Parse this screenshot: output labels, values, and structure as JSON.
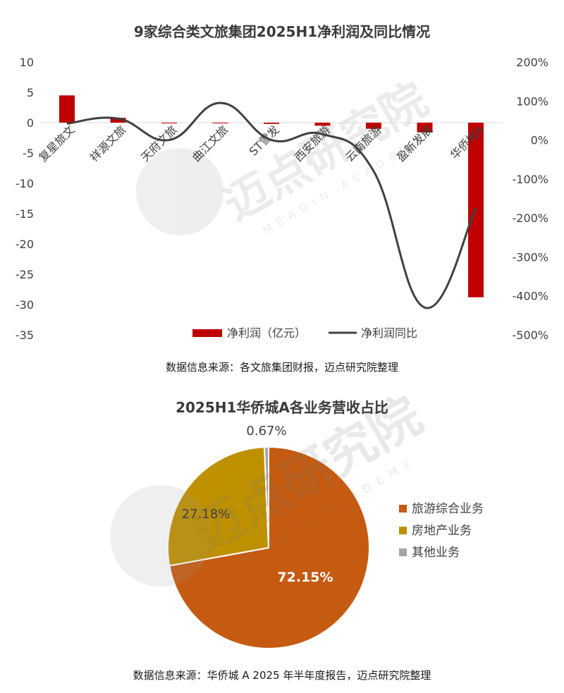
{
  "chart_data": [
    {
      "type": "bar",
      "title": "9家综合类文旅集团2025H1净利润及同比情况",
      "categories": [
        "复星旅文",
        "祥源文旅",
        "天府文旅",
        "曲江文旅",
        "ST雪发",
        "西安旅游",
        "云南旅游",
        "盈新发展",
        "华侨城A"
      ],
      "series": [
        {
          "name": "净利润（亿元）",
          "kind": "bar",
          "axis": "left",
          "color": "#C00000",
          "values": [
            4.5,
            0.8,
            0.0,
            -0.1,
            -0.2,
            -0.5,
            -1.0,
            -1.6,
            -28.8
          ]
        },
        {
          "name": "净利润同比",
          "kind": "line",
          "axis": "right",
          "color": "#404040",
          "values": [
            42,
            55,
            0,
            95,
            0,
            15,
            -80,
            -430,
            -175
          ]
        }
      ],
      "ylim": [
        -35,
        10
      ],
      "yticks": [
        "10",
        "5",
        "0",
        "-5",
        "-10",
        "-15",
        "-20",
        "-25",
        "-30",
        "-35"
      ],
      "y2lim": [
        -500,
        200
      ],
      "y2ticks": [
        "200%",
        "100%",
        "0%",
        "-100%",
        "-200%",
        "-300%",
        "-400%",
        "-500%"
      ],
      "grid": false,
      "legend": "bottom"
    },
    {
      "type": "pie",
      "title": "2025H1华侨城A各业务营收占比",
      "slices": [
        {
          "name": "旅游综合业务",
          "value": 72.15,
          "label": "72.15%",
          "color": "#C55A11"
        },
        {
          "name": "房地产业务",
          "value": 27.18,
          "label": "27.18%",
          "color": "#BF9000"
        },
        {
          "name": "其他业务",
          "value": 0.67,
          "label": "0.67%",
          "color": "#A5A5A5"
        }
      ],
      "legend": "right"
    }
  ],
  "watermark": {
    "text": "迈点研究院",
    "subtext": "MEADIN ACADEMY"
  },
  "source1": "数据信息来源：各文旅集团财报，迈点研究院整理",
  "source2": "数据信息来源：华侨城 A 2025 年半年度报告，迈点研究院整理"
}
